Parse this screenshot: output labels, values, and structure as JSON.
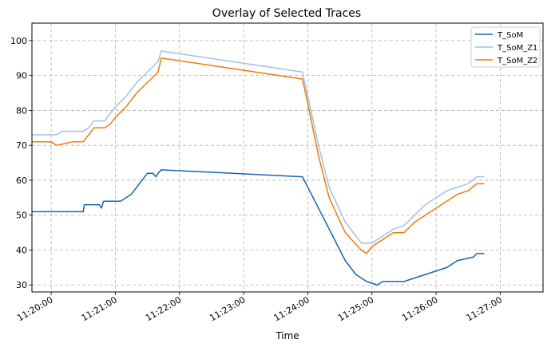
{
  "chart_data": {
    "type": "line",
    "title": "Overlay of Selected Traces",
    "xlabel": "Time",
    "ylabel": "",
    "grid": true,
    "legend_position": "top-right",
    "x_ticks": [
      "11:20:00",
      "11:21:00",
      "11:22:00",
      "11:23:00",
      "11:24:00",
      "11:25:00",
      "11:26:00",
      "11:27:00"
    ],
    "y_ticks": [
      "30",
      "40",
      "50",
      "60",
      "70",
      "80",
      "90",
      "100"
    ],
    "xlim": [
      "11:19:42",
      "11:27:40"
    ],
    "ylim": [
      28,
      105
    ],
    "series": [
      {
        "name": "T_SoM",
        "color": "#1565b0",
        "points": [
          [
            "11:19:42",
            51
          ],
          [
            "11:20:30",
            51
          ],
          [
            "11:20:31",
            53
          ],
          [
            "11:20:45",
            53
          ],
          [
            "11:20:47",
            52
          ],
          [
            "11:20:49",
            54
          ],
          [
            "11:21:05",
            54
          ],
          [
            "11:21:10",
            55
          ],
          [
            "11:21:15",
            56
          ],
          [
            "11:21:20",
            58
          ],
          [
            "11:21:25",
            60
          ],
          [
            "11:21:30",
            62
          ],
          [
            "11:21:35",
            62
          ],
          [
            "11:21:38",
            61
          ],
          [
            "11:21:40",
            62
          ],
          [
            "11:21:43",
            63
          ],
          [
            "11:23:55",
            61
          ],
          [
            "11:24:05",
            55
          ],
          [
            "11:24:15",
            49
          ],
          [
            "11:24:25",
            43
          ],
          [
            "11:24:35",
            37
          ],
          [
            "11:24:45",
            33
          ],
          [
            "11:24:55",
            31
          ],
          [
            "11:25:05",
            30
          ],
          [
            "11:25:10",
            31
          ],
          [
            "11:25:30",
            31
          ],
          [
            "11:25:40",
            32
          ],
          [
            "11:25:50",
            33
          ],
          [
            "11:26:00",
            34
          ],
          [
            "11:26:10",
            35
          ],
          [
            "11:26:20",
            37
          ],
          [
            "11:26:35",
            38
          ],
          [
            "11:26:38",
            39
          ],
          [
            "11:26:45",
            39
          ]
        ]
      },
      {
        "name": "T_SoM_Z1",
        "color": "#9fc1e8",
        "points": [
          [
            "11:19:42",
            73
          ],
          [
            "11:20:05",
            73
          ],
          [
            "11:20:10",
            74
          ],
          [
            "11:20:30",
            74
          ],
          [
            "11:20:35",
            75
          ],
          [
            "11:20:40",
            77
          ],
          [
            "11:20:50",
            77
          ],
          [
            "11:20:55",
            79
          ],
          [
            "11:21:00",
            81
          ],
          [
            "11:21:10",
            84
          ],
          [
            "11:21:20",
            88
          ],
          [
            "11:21:30",
            91
          ],
          [
            "11:21:40",
            94
          ],
          [
            "11:21:43",
            97
          ],
          [
            "11:23:55",
            91
          ],
          [
            "11:24:00",
            84
          ],
          [
            "11:24:10",
            70
          ],
          [
            "11:24:20",
            58
          ],
          [
            "11:24:35",
            48
          ],
          [
            "11:24:50",
            42
          ],
          [
            "11:25:00",
            42
          ],
          [
            "11:25:10",
            44
          ],
          [
            "11:25:20",
            46
          ],
          [
            "11:25:30",
            47
          ],
          [
            "11:25:40",
            50
          ],
          [
            "11:25:50",
            53
          ],
          [
            "11:26:00",
            55
          ],
          [
            "11:26:10",
            57
          ],
          [
            "11:26:20",
            58
          ],
          [
            "11:26:30",
            59
          ],
          [
            "11:26:38",
            61
          ],
          [
            "11:26:45",
            61
          ]
        ]
      },
      {
        "name": "T_SoM_Z2",
        "color": "#f07a0a",
        "points": [
          [
            "11:19:42",
            71
          ],
          [
            "11:20:00",
            71
          ],
          [
            "11:20:05",
            70
          ],
          [
            "11:20:20",
            71
          ],
          [
            "11:20:30",
            71
          ],
          [
            "11:20:35",
            73
          ],
          [
            "11:20:40",
            75
          ],
          [
            "11:20:50",
            75
          ],
          [
            "11:20:55",
            76
          ],
          [
            "11:21:00",
            78
          ],
          [
            "11:21:10",
            81
          ],
          [
            "11:21:20",
            85
          ],
          [
            "11:21:30",
            88
          ],
          [
            "11:21:40",
            91
          ],
          [
            "11:21:43",
            95
          ],
          [
            "11:23:55",
            89
          ],
          [
            "11:24:00",
            82
          ],
          [
            "11:24:10",
            67
          ],
          [
            "11:24:20",
            55
          ],
          [
            "11:24:35",
            45
          ],
          [
            "11:24:50",
            40
          ],
          [
            "11:24:55",
            39
          ],
          [
            "11:25:00",
            41
          ],
          [
            "11:25:10",
            43
          ],
          [
            "11:25:20",
            45
          ],
          [
            "11:25:30",
            45
          ],
          [
            "11:25:40",
            48
          ],
          [
            "11:25:50",
            50
          ],
          [
            "11:26:00",
            52
          ],
          [
            "11:26:10",
            54
          ],
          [
            "11:26:20",
            56
          ],
          [
            "11:26:30",
            57
          ],
          [
            "11:26:38",
            59
          ],
          [
            "11:26:45",
            59
          ]
        ]
      }
    ]
  }
}
